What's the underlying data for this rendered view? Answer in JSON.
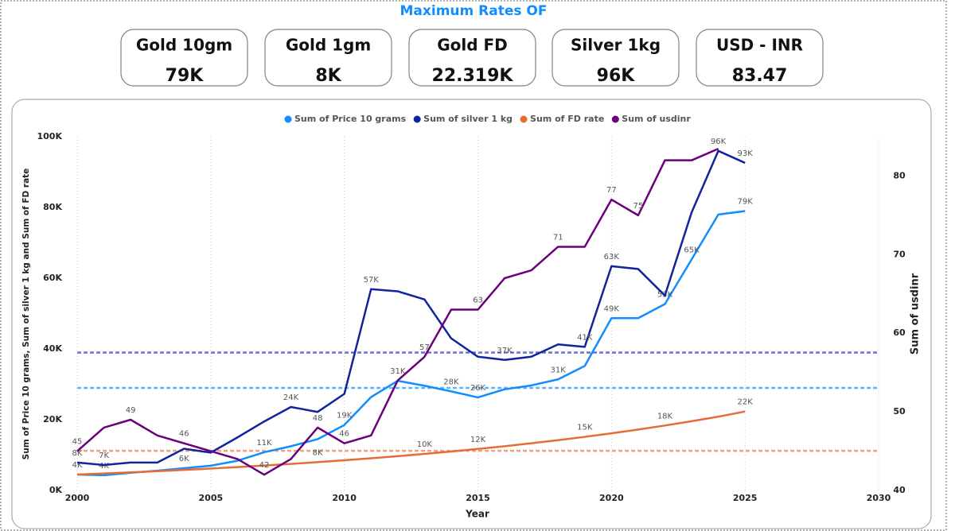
{
  "header": {
    "title": "Maximum Rates OF"
  },
  "cards": [
    {
      "label": "Gold 10gm",
      "value": "79K"
    },
    {
      "label": "Gold 1gm",
      "value": "8K"
    },
    {
      "label": "Gold FD",
      "value": "22.319K"
    },
    {
      "label": "Silver 1kg",
      "value": "96K"
    },
    {
      "label": "USD - INR",
      "value": "83.47"
    }
  ],
  "chart_data": {
    "type": "line",
    "x_label": "Year",
    "y_label": "Sum of Price 10 grams, Sum of silver 1 kg and Sum of FD rate",
    "y2_label": "Sum of usdinr",
    "x": [
      2000,
      2001,
      2002,
      2003,
      2004,
      2005,
      2006,
      2007,
      2008,
      2009,
      2010,
      2011,
      2012,
      2013,
      2014,
      2015,
      2016,
      2017,
      2018,
      2019,
      2020,
      2021,
      2022,
      2023,
      2024,
      2025
    ],
    "xlim": [
      2000,
      2030
    ],
    "xticks": [
      2000,
      2005,
      2010,
      2015,
      2020,
      2025,
      2030
    ],
    "ylim": [
      0,
      100000
    ],
    "yticks": [
      {
        "value": 0,
        "label": "0K"
      },
      {
        "value": 20000,
        "label": "20K"
      },
      {
        "value": 40000,
        "label": "40K"
      },
      {
        "value": 60000,
        "label": "60K"
      },
      {
        "value": 80000,
        "label": "80K"
      },
      {
        "value": 100000,
        "label": "100K"
      }
    ],
    "y2lim": [
      40,
      85
    ],
    "y2ticks": [
      40,
      50,
      60,
      70,
      80
    ],
    "xgrid": true,
    "legend": "top",
    "series": [
      {
        "name": "Sum of Price 10 grams",
        "color": "#118dff",
        "values": [
          4500,
          4300,
          5000,
          5600,
          6300,
          7000,
          8400,
          10800,
          12500,
          14500,
          18500,
          26400,
          31000,
          29600,
          28000,
          26300,
          28600,
          29700,
          31400,
          35200,
          48700,
          48700,
          52700,
          65300,
          78000,
          79000
        ],
        "value_labels": [
          "4K",
          "4K",
          null,
          null,
          "6K",
          null,
          null,
          "11K",
          null,
          null,
          "19K",
          null,
          "31K",
          null,
          "28K",
          "26K",
          null,
          null,
          "31K",
          null,
          "49K",
          null,
          "53K",
          "65K",
          null,
          "79K"
        ]
      },
      {
        "name": "Sum of silver 1 kg",
        "color": "#12239e",
        "values": [
          7900,
          7200,
          7900,
          7900,
          11800,
          10700,
          15000,
          19500,
          23600,
          22200,
          27300,
          56900,
          56300,
          54000,
          43000,
          37800,
          36900,
          37800,
          41300,
          40600,
          63400,
          62600,
          55100,
          78600,
          96000,
          92600
        ],
        "value_labels": [
          "8K",
          "7K",
          null,
          null,
          null,
          null,
          null,
          null,
          "24K",
          null,
          null,
          "57K",
          null,
          null,
          null,
          null,
          "37K",
          null,
          null,
          "41K",
          "63K",
          null,
          null,
          null,
          "96K",
          "93K"
        ]
      },
      {
        "name": "Sum of FD rate",
        "color": "#e66c37",
        "values": [
          4500,
          4797,
          5113,
          5451,
          5811,
          6194,
          6603,
          7039,
          7503,
          7998,
          8526,
          9089,
          9689,
          10328,
          11010,
          11736,
          12511,
          13337,
          14217,
          15155,
          16155,
          17221,
          18358,
          19569,
          20860,
          22319
        ],
        "value_labels": [
          null,
          null,
          null,
          null,
          null,
          null,
          null,
          null,
          null,
          "8K",
          null,
          null,
          null,
          "10K",
          null,
          "12K",
          null,
          null,
          null,
          "15K",
          null,
          null,
          "18K",
          null,
          null,
          "22K"
        ]
      },
      {
        "name": "Sum of usdinr",
        "color": "#6b007b",
        "axis": "y2",
        "values": [
          45,
          48,
          49,
          47,
          46,
          45,
          44,
          42,
          44,
          48,
          46,
          47,
          54,
          57,
          63,
          63,
          67,
          68,
          71,
          71,
          77,
          75,
          82,
          82,
          83.47,
          null
        ],
        "value_labels": [
          "45",
          null,
          "49",
          null,
          "46",
          null,
          null,
          "42",
          null,
          "48",
          "46",
          null,
          null,
          "57",
          null,
          "63",
          null,
          null,
          "71",
          null,
          "77",
          "75",
          null,
          null,
          null,
          null
        ]
      }
    ],
    "reference_lines": [
      {
        "value": 39000,
        "color": "#6b6fd1"
      },
      {
        "value": 29000,
        "color": "#5fb3ff"
      },
      {
        "value": 11200,
        "color": "#f0a07a"
      }
    ]
  }
}
